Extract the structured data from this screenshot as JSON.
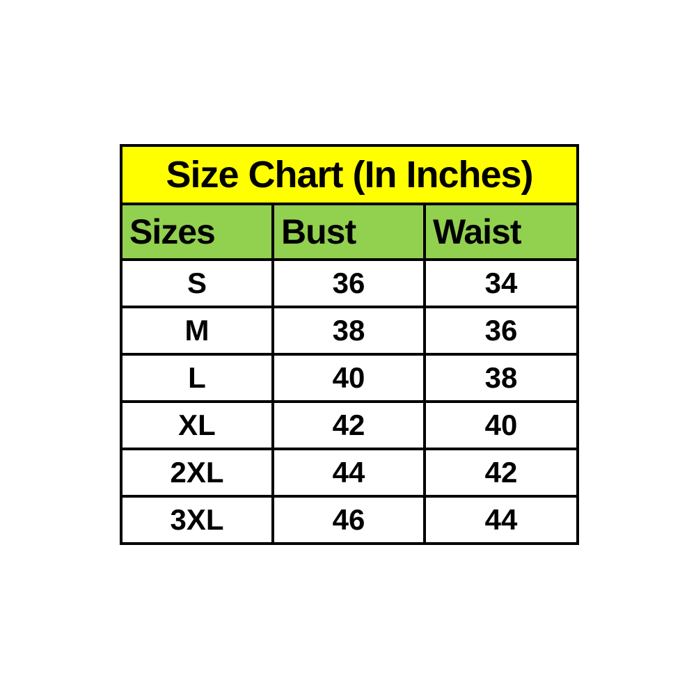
{
  "chart_data": {
    "type": "table",
    "title": "Size Chart (In Inches)",
    "columns": [
      "Sizes",
      "Bust",
      "Waist"
    ],
    "rows": [
      [
        "S",
        "36",
        "34"
      ],
      [
        "M",
        "38",
        "36"
      ],
      [
        "L",
        "40",
        "38"
      ],
      [
        "XL",
        "42",
        "40"
      ],
      [
        "2XL",
        "44",
        "42"
      ],
      [
        "3XL",
        "46",
        "44"
      ]
    ]
  },
  "table": {
    "title": "Size Chart (In Inches)",
    "columns": [
      "Sizes",
      "Bust",
      "Waist"
    ],
    "rows": [
      [
        "S",
        "36",
        "34"
      ],
      [
        "M",
        "38",
        "36"
      ],
      [
        "L",
        "40",
        "38"
      ],
      [
        "XL",
        "42",
        "40"
      ],
      [
        "2XL",
        "44",
        "42"
      ],
      [
        "3XL",
        "46",
        "44"
      ]
    ],
    "colors": {
      "title_background": "#ffff00",
      "header_background": "#92d050",
      "border": "#000000",
      "text": "#000000",
      "page_background": "#ffffff"
    }
  }
}
